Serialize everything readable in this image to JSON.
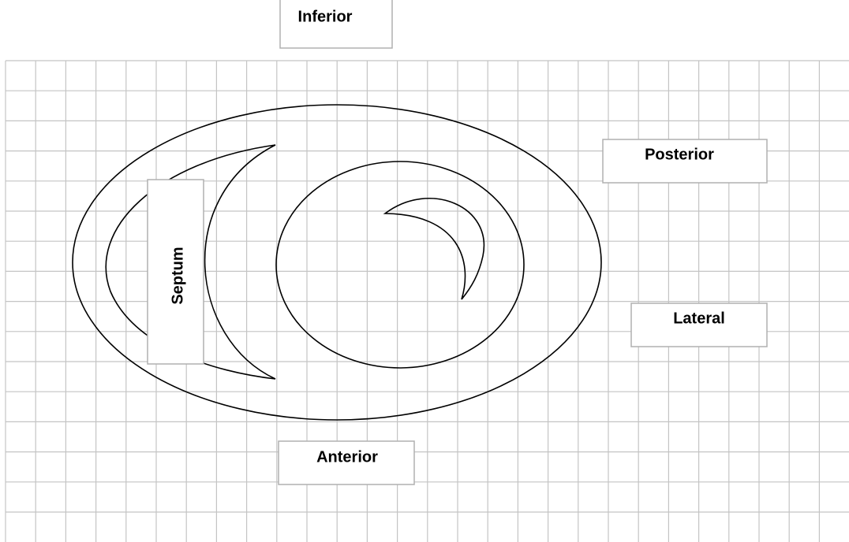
{
  "labels": {
    "inferior": "Inferior",
    "posterior": "Posterior",
    "septum": "Septum",
    "lateral": "Lateral",
    "anterior": "Anterior"
  }
}
